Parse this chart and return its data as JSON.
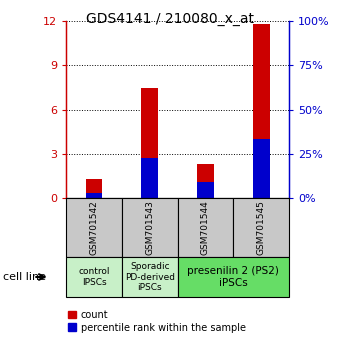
{
  "title": "GDS4141 / 210080_x_at",
  "samples": [
    "GSM701542",
    "GSM701543",
    "GSM701544",
    "GSM701545"
  ],
  "count_values": [
    1.3,
    7.5,
    2.3,
    11.8
  ],
  "percentile_values": [
    0.35,
    2.7,
    1.1,
    4.0
  ],
  "ylim_left": [
    0,
    12
  ],
  "ylim_right": [
    0,
    100
  ],
  "yticks_left": [
    0,
    3,
    6,
    9,
    12
  ],
  "yticks_right": [
    0,
    25,
    50,
    75,
    100
  ],
  "bar_color": "#cc0000",
  "percentile_color": "#0000cc",
  "bar_width": 0.3,
  "cell_line_label": "cell line",
  "legend_count_label": "count",
  "legend_percentile_label": "percentile rank within the sample",
  "title_fontsize": 10,
  "axis_color_left": "#cc0000",
  "axis_color_right": "#0000cc",
  "plot_bg": "#ffffff",
  "header_bg": "#c8c8c8",
  "group_light_green": "#c8f0c8",
  "group_bright_green": "#66dd66"
}
